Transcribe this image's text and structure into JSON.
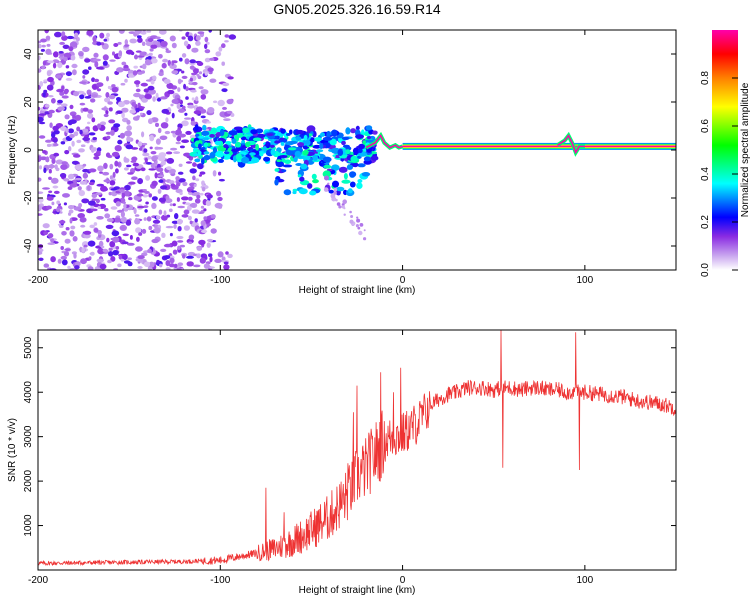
{
  "chart_data": [
    {
      "type": "heatmap",
      "title": "GN05.2025.326.16.59.R14",
      "xlabel": "Height of straight line (km)",
      "ylabel": "Frequency (Hz)",
      "xlim": [
        -200,
        150
      ],
      "ylim": [
        -50,
        50
      ],
      "x_ticks": [
        -200,
        -100,
        0,
        100
      ],
      "y_ticks": [
        -40,
        -20,
        0,
        20,
        40
      ],
      "colorbar": {
        "label": "Normalized spectral amplitude",
        "range": [
          0,
          1
        ],
        "ticks": [
          0,
          0.2,
          0.4,
          0.6,
          0.8
        ],
        "tick_labels": [
          "0.0",
          "0.2",
          "0.4",
          "0.6",
          "0.8"
        ],
        "colors": [
          "#ffffff",
          "#8a2be2",
          "#0000ff",
          "#00ffff",
          "#00ff00",
          "#ffff00",
          "#ff8000",
          "#ff0000",
          "#ff00aa"
        ]
      },
      "features": [
        {
          "name": "noise_region",
          "x_range": [
            -200,
            -105
          ],
          "freq_range": [
            -50,
            50
          ],
          "amplitude": 0.1
        },
        {
          "name": "scattered_band",
          "x_range": [
            -115,
            -15
          ],
          "freq_range": [
            -10,
            10
          ],
          "amplitude": 0.35
        },
        {
          "name": "carrier_line",
          "x_range": [
            0,
            150
          ],
          "freq": 1.5,
          "amplitude": 1.0
        }
      ]
    },
    {
      "type": "line",
      "xlabel": "Height of straight line (km)",
      "ylabel": "SNR (10 * v/v)",
      "xlim": [
        -200,
        150
      ],
      "ylim": [
        0,
        5400
      ],
      "x_ticks": [
        -200,
        -100,
        0,
        100
      ],
      "y_ticks": [
        1000,
        2000,
        3000,
        4000,
        5000
      ],
      "color": "#ee3333",
      "series": [
        {
          "name": "SNR",
          "x": [
            -200,
            -180,
            -160,
            -140,
            -120,
            -100,
            -90,
            -80,
            -70,
            -60,
            -50,
            -40,
            -30,
            -25,
            -20,
            -15,
            -10,
            -5,
            0,
            5,
            10,
            15,
            20,
            25,
            30,
            35,
            40,
            45,
            50,
            55,
            60,
            65,
            70,
            75,
            80,
            85,
            90,
            95,
            100,
            110,
            120,
            130,
            140,
            150
          ],
          "y": [
            150,
            160,
            170,
            180,
            190,
            220,
            300,
            380,
            480,
            650,
            900,
            1200,
            1700,
            2100,
            2300,
            2600,
            2900,
            3000,
            3050,
            3200,
            3400,
            3700,
            3850,
            3950,
            4000,
            4100,
            4100,
            4100,
            4050,
            4100,
            4100,
            4050,
            4100,
            4100,
            4050,
            4050,
            4000,
            4000,
            4000,
            3950,
            3900,
            3800,
            3750,
            3650
          ]
        }
      ],
      "spikes": [
        {
          "x": -75,
          "y": 1850
        },
        {
          "x": -65,
          "y": 1300
        },
        {
          "x": -30,
          "y": 2400
        },
        {
          "x": -27,
          "y": 3550
        },
        {
          "x": -25,
          "y": 4150
        },
        {
          "x": -12,
          "y": 4450
        },
        {
          "x": -5,
          "y": 4000
        },
        {
          "x": -1,
          "y": 4550
        },
        {
          "x": 54,
          "y": 5400
        },
        {
          "x": 55,
          "y": 2300
        },
        {
          "x": 95,
          "y": 5350
        },
        {
          "x": 97,
          "y": 2250
        }
      ]
    }
  ]
}
